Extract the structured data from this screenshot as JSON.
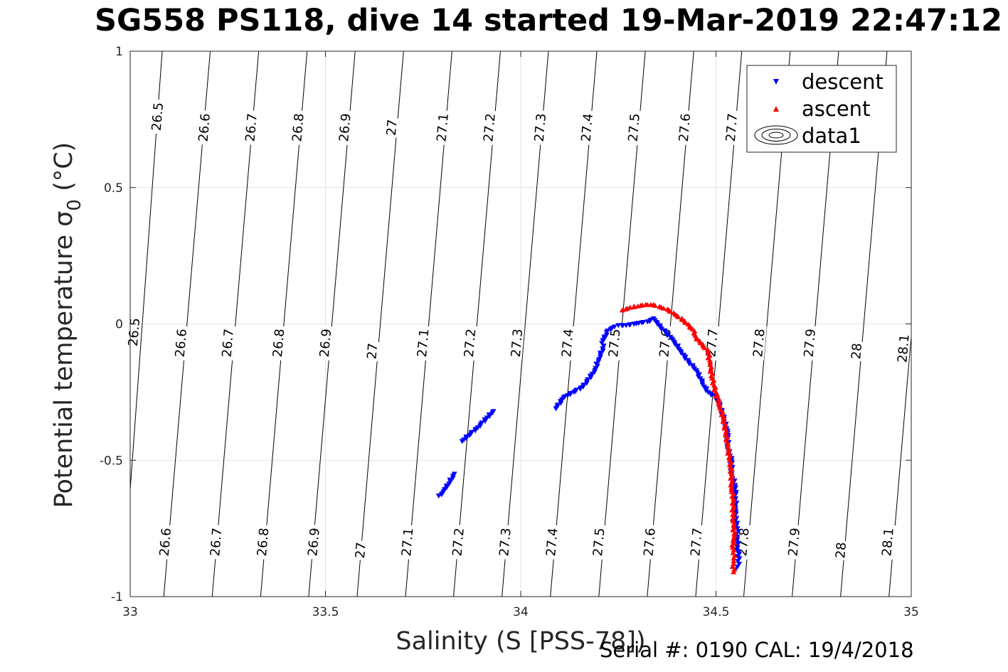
{
  "title": "SG558 PS118, dive 14 started 19-Mar-2019 22:47:12",
  "footer": "Serial #: 0190  CAL: 19/4/2018",
  "chart_data": {
    "type": "scatter",
    "xlabel": "Salinity (S [PSS-78])",
    "ylabel": "Potential temperature σ",
    "ylabel_sub": "0",
    "ylabel_unit": " (°C)",
    "xlim": [
      33,
      35
    ],
    "ylim": [
      -1,
      1
    ],
    "xticks": [
      33,
      33.5,
      34,
      34.5,
      35
    ],
    "xtick_labels": [
      "33",
      "33.5",
      "34",
      "34.5",
      "35"
    ],
    "yticks": [
      -1,
      -0.5,
      0,
      0.5,
      1
    ],
    "ytick_labels": [
      "-1",
      "-0.5",
      "0",
      "0.5",
      "1"
    ],
    "grid": true,
    "legend": {
      "placement": "top-right",
      "entries": [
        {
          "label": "descent",
          "marker": "triangle-down",
          "color": "#0000ff"
        },
        {
          "label": "ascent",
          "marker": "triangle-up",
          "color": "#ff0000"
        },
        {
          "label": "data1",
          "marker": "contour",
          "color": "#000000"
        }
      ]
    },
    "isopycnals": [
      {
        "value": 26.5,
        "label": "26.5",
        "salinity_at_tmax": 33.082,
        "salinity_at_tmin": 32.98
      },
      {
        "value": 26.6,
        "label": "26.6",
        "salinity_at_tmax": 33.205,
        "salinity_at_tmin": 33.086
      },
      {
        "value": 26.7,
        "label": "26.7",
        "salinity_at_tmax": 33.329,
        "salinity_at_tmin": 33.21
      },
      {
        "value": 26.8,
        "label": "26.8",
        "salinity_at_tmax": 33.453,
        "salinity_at_tmin": 33.334
      },
      {
        "value": 26.9,
        "label": "26.9",
        "salinity_at_tmax": 33.576,
        "salinity_at_tmin": 33.457
      },
      {
        "value": 27.0,
        "label": "27",
        "salinity_at_tmax": 33.7,
        "salinity_at_tmin": 33.581
      },
      {
        "value": 27.1,
        "label": "27.1",
        "salinity_at_tmax": 33.824,
        "salinity_at_tmin": 33.705
      },
      {
        "value": 27.2,
        "label": "27.2",
        "salinity_at_tmax": 33.948,
        "salinity_at_tmin": 33.828
      },
      {
        "value": 27.3,
        "label": "27.3",
        "salinity_at_tmax": 34.071,
        "salinity_at_tmin": 33.952
      },
      {
        "value": 27.4,
        "label": "27.4",
        "salinity_at_tmax": 34.195,
        "salinity_at_tmin": 34.076
      },
      {
        "value": 27.5,
        "label": "27.5",
        "salinity_at_tmax": 34.319,
        "salinity_at_tmin": 34.2
      },
      {
        "value": 27.6,
        "label": "27.6",
        "salinity_at_tmax": 34.443,
        "salinity_at_tmin": 34.324
      },
      {
        "value": 27.7,
        "label": "27.7",
        "salinity_at_tmax": 34.566,
        "salinity_at_tmin": 34.448
      },
      {
        "value": 27.8,
        "label": "27.8",
        "salinity_at_tmax": 34.69,
        "salinity_at_tmin": 34.571
      },
      {
        "value": 27.9,
        "label": "27.9",
        "salinity_at_tmax": 34.814,
        "salinity_at_tmin": 34.695
      },
      {
        "value": 28.0,
        "label": "28",
        "salinity_at_tmax": 34.938,
        "salinity_at_tmin": 34.819
      },
      {
        "value": 28.1,
        "label": "28.1",
        "salinity_at_tmax": 35.062,
        "salinity_at_tmin": 34.943
      }
    ],
    "contour_labels": [
      {
        "text": "26.5",
        "s": 33.07,
        "t": 0.76
      },
      {
        "text": "26.6",
        "s": 33.19,
        "t": 0.72
      },
      {
        "text": "26.7",
        "s": 33.31,
        "t": 0.72
      },
      {
        "text": "26.8",
        "s": 33.43,
        "t": 0.72
      },
      {
        "text": "26.9",
        "s": 33.55,
        "t": 0.72
      },
      {
        "text": "27",
        "s": 33.67,
        "t": 0.72
      },
      {
        "text": "27.1",
        "s": 33.8,
        "t": 0.72
      },
      {
        "text": "27.2",
        "s": 33.92,
        "t": 0.72
      },
      {
        "text": "27.3",
        "s": 34.05,
        "t": 0.72
      },
      {
        "text": "27.4",
        "s": 34.17,
        "t": 0.72
      },
      {
        "text": "27.5",
        "s": 34.29,
        "t": 0.72
      },
      {
        "text": "27.6",
        "s": 34.42,
        "t": 0.72
      },
      {
        "text": "27.7",
        "s": 34.54,
        "t": 0.72
      },
      {
        "text": "26.5",
        "s": 33.01,
        "t": -0.03
      },
      {
        "text": "26.6",
        "s": 33.13,
        "t": -0.07
      },
      {
        "text": "26.7",
        "s": 33.25,
        "t": -0.07
      },
      {
        "text": "26.8",
        "s": 33.38,
        "t": -0.07
      },
      {
        "text": "26.9",
        "s": 33.5,
        "t": -0.07
      },
      {
        "text": "27",
        "s": 33.62,
        "t": -0.1
      },
      {
        "text": "27.1",
        "s": 33.75,
        "t": -0.07
      },
      {
        "text": "27.2",
        "s": 33.87,
        "t": -0.07
      },
      {
        "text": "27.3",
        "s": 33.99,
        "t": -0.07
      },
      {
        "text": "27.4",
        "s": 34.12,
        "t": -0.07
      },
      {
        "text": "27.5",
        "s": 34.24,
        "t": -0.07
      },
      {
        "text": "27.6",
        "s": 34.37,
        "t": -0.07
      },
      {
        "text": "27.7",
        "s": 34.49,
        "t": -0.07
      },
      {
        "text": "27.8",
        "s": 34.61,
        "t": -0.07
      },
      {
        "text": "27.9",
        "s": 34.74,
        "t": -0.07
      },
      {
        "text": "28",
        "s": 34.86,
        "t": -0.1
      },
      {
        "text": "28.1",
        "s": 34.98,
        "t": -0.09
      },
      {
        "text": "26.6",
        "s": 33.09,
        "t": -0.8
      },
      {
        "text": "26.7",
        "s": 33.22,
        "t": -0.8
      },
      {
        "text": "26.8",
        "s": 33.34,
        "t": -0.8
      },
      {
        "text": "26.9",
        "s": 33.47,
        "t": -0.8
      },
      {
        "text": "27",
        "s": 33.59,
        "t": -0.83
      },
      {
        "text": "27.1",
        "s": 33.71,
        "t": -0.8
      },
      {
        "text": "27.2",
        "s": 33.84,
        "t": -0.8
      },
      {
        "text": "27.3",
        "s": 33.96,
        "t": -0.8
      },
      {
        "text": "27.4",
        "s": 34.08,
        "t": -0.8
      },
      {
        "text": "27.5",
        "s": 34.2,
        "t": -0.8
      },
      {
        "text": "27.6",
        "s": 34.33,
        "t": -0.8
      },
      {
        "text": "27.7",
        "s": 34.45,
        "t": -0.8
      },
      {
        "text": "27.8",
        "s": 34.57,
        "t": -0.8
      },
      {
        "text": "27.9",
        "s": 34.7,
        "t": -0.8
      },
      {
        "text": "28",
        "s": 34.82,
        "t": -0.83
      },
      {
        "text": "28.1",
        "s": 34.94,
        "t": -0.8
      }
    ],
    "series": [
      {
        "name": "descent",
        "color": "#0000ff",
        "marker": "triangle-down",
        "x": [
          33.79,
          33.8,
          33.81,
          33.83,
          33.85,
          33.89,
          33.93,
          34.09,
          34.11,
          34.16,
          34.19,
          34.2,
          34.21,
          34.21,
          34.22,
          34.22,
          34.23,
          34.24,
          34.25,
          34.27,
          34.29,
          34.31,
          34.33,
          34.34,
          34.35,
          34.37,
          34.39,
          34.41,
          34.43,
          34.45,
          34.46,
          34.47,
          34.48,
          34.5,
          34.51,
          34.52,
          34.53,
          34.53,
          34.54,
          34.54,
          34.55,
          34.55,
          34.55,
          34.55,
          34.555,
          34.555,
          34.555,
          34.56,
          34.555,
          34.55
        ],
        "y": [
          -0.63,
          -0.62,
          -0.6,
          -0.55,
          -0.43,
          -0.38,
          -0.32,
          -0.31,
          -0.27,
          -0.23,
          -0.17,
          -0.13,
          -0.09,
          -0.06,
          -0.04,
          -0.03,
          -0.02,
          -0.01,
          -0.005,
          -0.005,
          -0.0,
          0.005,
          0.01,
          0.02,
          0.0,
          -0.03,
          -0.06,
          -0.1,
          -0.14,
          -0.17,
          -0.2,
          -0.23,
          -0.25,
          -0.27,
          -0.3,
          -0.35,
          -0.4,
          -0.46,
          -0.5,
          -0.55,
          -0.6,
          -0.64,
          -0.68,
          -0.72,
          -0.75,
          -0.78,
          -0.82,
          -0.86,
          -0.89,
          -0.9
        ]
      },
      {
        "name": "ascent",
        "color": "#ff0000",
        "marker": "triangle-up",
        "x": [
          34.545,
          34.545,
          34.548,
          34.543,
          34.547,
          34.545,
          34.543,
          34.545,
          34.54,
          34.54,
          34.535,
          34.53,
          34.525,
          34.52,
          34.51,
          34.5,
          34.49,
          34.485,
          34.48,
          34.46,
          34.45,
          34.44,
          34.42,
          34.4,
          34.38,
          34.36,
          34.34,
          34.32,
          34.3,
          34.28,
          34.26
        ],
        "y": [
          -0.91,
          -0.88,
          -0.85,
          -0.82,
          -0.78,
          -0.74,
          -0.7,
          -0.65,
          -0.6,
          -0.55,
          -0.5,
          -0.45,
          -0.4,
          -0.35,
          -0.3,
          -0.25,
          -0.2,
          -0.15,
          -0.1,
          -0.07,
          -0.05,
          -0.02,
          0.01,
          0.03,
          0.05,
          0.06,
          0.07,
          0.07,
          0.065,
          0.06,
          0.05
        ]
      }
    ]
  }
}
